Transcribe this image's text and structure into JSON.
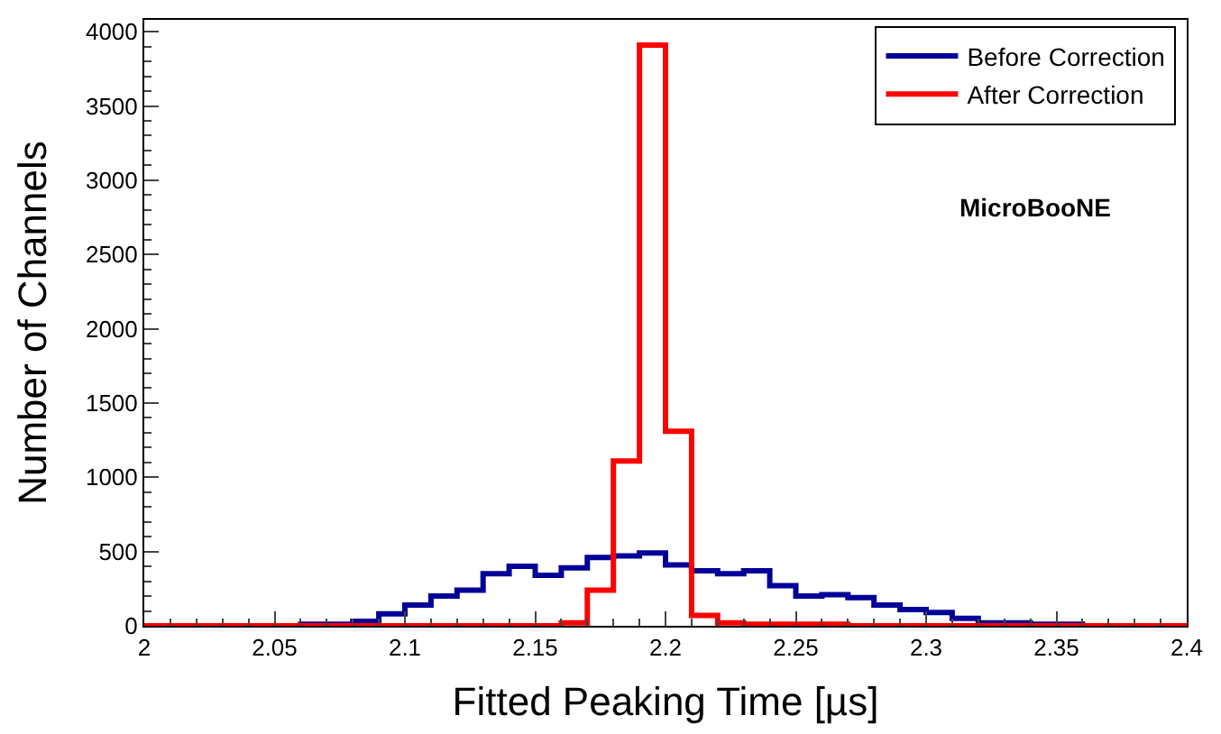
{
  "chart_data": {
    "type": "histogram",
    "xlabel": "Fitted Peaking Time [µs]",
    "ylabel": "Number of Channels",
    "annotations": [
      "MicroBooNE"
    ],
    "bins": [
      2.0,
      2.01,
      2.02,
      2.03,
      2.04,
      2.05,
      2.06,
      2.07,
      2.08,
      2.09,
      2.1,
      2.11,
      2.12,
      2.13,
      2.14,
      2.15,
      2.16,
      2.17,
      2.18,
      2.19,
      2.2,
      2.21,
      2.22,
      2.23,
      2.24,
      2.25,
      2.26,
      2.27,
      2.28,
      2.29,
      2.3,
      2.31,
      2.32,
      2.33,
      2.34,
      2.35,
      2.36,
      2.37,
      2.38,
      2.39,
      2.4
    ],
    "series": [
      {
        "name": "Before Correction",
        "color": "#000099",
        "values": [
          0,
          0,
          0,
          0,
          0,
          0,
          10,
          10,
          30,
          80,
          140,
          200,
          240,
          350,
          400,
          340,
          390,
          460,
          470,
          490,
          410,
          370,
          350,
          370,
          270,
          200,
          210,
          190,
          140,
          110,
          90,
          50,
          20,
          20,
          10,
          10,
          0,
          0,
          0,
          0
        ]
      },
      {
        "name": "After Correction",
        "color": "#ff0000",
        "values": [
          0,
          0,
          0,
          0,
          0,
          0,
          0,
          0,
          0,
          0,
          0,
          0,
          0,
          0,
          0,
          0,
          20,
          240,
          1110,
          3910,
          1310,
          70,
          20,
          10,
          10,
          10,
          10,
          0,
          0,
          0,
          0,
          0,
          0,
          0,
          0,
          0,
          0,
          0,
          0,
          0
        ]
      }
    ],
    "xlim": [
      2.0,
      2.4
    ],
    "ylim": [
      0,
      4080
    ],
    "xticks": [
      {
        "value": 2.0,
        "label": "2"
      },
      2.05,
      {
        "value": 2.1,
        "label": "2.1"
      },
      2.15,
      {
        "value": 2.2,
        "label": "2.2"
      },
      2.25,
      {
        "value": 2.3,
        "label": "2.3"
      },
      2.35,
      {
        "value": 2.4,
        "label": "2.4"
      }
    ],
    "yticks": [
      0,
      500,
      1000,
      1500,
      2000,
      2500,
      3000,
      3500,
      4000
    ],
    "legend": "top right"
  }
}
